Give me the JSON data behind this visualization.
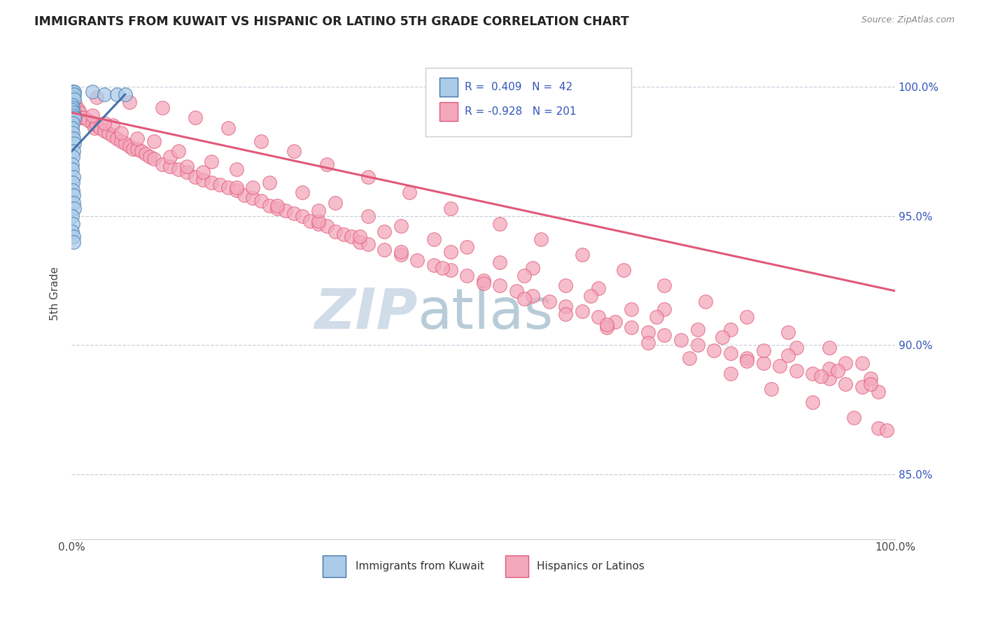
{
  "title": "IMMIGRANTS FROM KUWAIT VS HISPANIC OR LATINO 5TH GRADE CORRELATION CHART",
  "source": "Source: ZipAtlas.com",
  "ylabel": "5th Grade",
  "ytick_labels": [
    "85.0%",
    "90.0%",
    "95.0%",
    "100.0%"
  ],
  "ytick_values": [
    0.85,
    0.9,
    0.95,
    1.0
  ],
  "xlim": [
    0.0,
    1.0
  ],
  "ylim": [
    0.825,
    1.015
  ],
  "blue_color": "#aacce8",
  "pink_color": "#f4a8bc",
  "blue_line_color": "#4472a8",
  "pink_line_color": "#e05878",
  "legend_text_color": "#3355bb",
  "watermark_zip_color": "#d0dce8",
  "watermark_atlas_color": "#b8ccd8",
  "background_color": "#ffffff",
  "grid_color": "#c8d0dc",
  "blue_trend_x0": 0.0,
  "blue_trend_y0": 0.975,
  "blue_trend_x1": 0.065,
  "blue_trend_y1": 0.997,
  "pink_trend_x0": 0.0,
  "pink_trend_y0": 0.99,
  "pink_trend_x1": 1.0,
  "pink_trend_y1": 0.921,
  "blue_scatter_x": [
    0.0005,
    0.001,
    0.0008,
    0.0012,
    0.001,
    0.0015,
    0.002,
    0.0018,
    0.002,
    0.0022,
    0.003,
    0.0025,
    0.003,
    0.0028,
    0.001,
    0.0012,
    0.0008,
    0.002,
    0.0022,
    0.003,
    0.0015,
    0.001,
    0.0018,
    0.0025,
    0.003,
    0.002,
    0.0012,
    0.001,
    0.0008,
    0.0022,
    0.0018,
    0.0015,
    0.002,
    0.0025,
    0.003,
    0.001,
    0.0012,
    0.0008,
    0.0022,
    0.002,
    0.025,
    0.04,
    0.055,
    0.065
  ],
  "blue_scatter_y": [
    0.998,
    0.997,
    0.996,
    0.998,
    0.995,
    0.997,
    0.996,
    0.998,
    0.997,
    0.996,
    0.998,
    0.996,
    0.997,
    0.995,
    0.993,
    0.992,
    0.991,
    0.99,
    0.989,
    0.988,
    0.986,
    0.984,
    0.982,
    0.98,
    0.978,
    0.975,
    0.973,
    0.97,
    0.968,
    0.965,
    0.963,
    0.96,
    0.958,
    0.955,
    0.953,
    0.95,
    0.947,
    0.944,
    0.942,
    0.94,
    0.998,
    0.997,
    0.997,
    0.997
  ],
  "pink_scatter_x": [
    0.005,
    0.008,
    0.01,
    0.012,
    0.015,
    0.02,
    0.025,
    0.028,
    0.03,
    0.035,
    0.04,
    0.045,
    0.05,
    0.055,
    0.06,
    0.065,
    0.07,
    0.075,
    0.08,
    0.085,
    0.09,
    0.095,
    0.1,
    0.11,
    0.12,
    0.13,
    0.14,
    0.15,
    0.16,
    0.17,
    0.18,
    0.19,
    0.2,
    0.21,
    0.22,
    0.23,
    0.24,
    0.25,
    0.26,
    0.27,
    0.28,
    0.29,
    0.3,
    0.31,
    0.32,
    0.33,
    0.34,
    0.35,
    0.36,
    0.38,
    0.4,
    0.42,
    0.44,
    0.46,
    0.48,
    0.5,
    0.52,
    0.54,
    0.56,
    0.58,
    0.6,
    0.62,
    0.64,
    0.66,
    0.68,
    0.7,
    0.72,
    0.74,
    0.76,
    0.78,
    0.8,
    0.82,
    0.84,
    0.86,
    0.88,
    0.9,
    0.92,
    0.94,
    0.96,
    0.98,
    0.025,
    0.05,
    0.08,
    0.12,
    0.16,
    0.2,
    0.25,
    0.3,
    0.35,
    0.4,
    0.45,
    0.5,
    0.55,
    0.6,
    0.65,
    0.7,
    0.75,
    0.8,
    0.85,
    0.9,
    0.95,
    0.98,
    0.03,
    0.07,
    0.11,
    0.15,
    0.19,
    0.23,
    0.27,
    0.31,
    0.36,
    0.41,
    0.46,
    0.52,
    0.57,
    0.62,
    0.67,
    0.72,
    0.77,
    0.82,
    0.87,
    0.92,
    0.96,
    0.06,
    0.13,
    0.2,
    0.28,
    0.36,
    0.44,
    0.52,
    0.6,
    0.68,
    0.76,
    0.84,
    0.92,
    0.97,
    0.04,
    0.1,
    0.17,
    0.24,
    0.32,
    0.4,
    0.48,
    0.56,
    0.64,
    0.72,
    0.8,
    0.88,
    0.94,
    0.99,
    0.14,
    0.22,
    0.3,
    0.38,
    0.46,
    0.55,
    0.63,
    0.71,
    0.79,
    0.87,
    0.93,
    0.97,
    0.65,
    0.82,
    0.91
  ],
  "pink_scatter_y": [
    0.993,
    0.991,
    0.99,
    0.988,
    0.988,
    0.987,
    0.986,
    0.984,
    0.985,
    0.984,
    0.983,
    0.982,
    0.981,
    0.98,
    0.979,
    0.978,
    0.977,
    0.976,
    0.976,
    0.975,
    0.974,
    0.973,
    0.972,
    0.97,
    0.969,
    0.968,
    0.967,
    0.965,
    0.964,
    0.963,
    0.962,
    0.961,
    0.96,
    0.958,
    0.957,
    0.956,
    0.954,
    0.953,
    0.952,
    0.951,
    0.95,
    0.948,
    0.947,
    0.946,
    0.944,
    0.943,
    0.942,
    0.94,
    0.939,
    0.937,
    0.935,
    0.933,
    0.931,
    0.929,
    0.927,
    0.925,
    0.923,
    0.921,
    0.919,
    0.917,
    0.915,
    0.913,
    0.911,
    0.909,
    0.907,
    0.905,
    0.904,
    0.902,
    0.9,
    0.898,
    0.897,
    0.895,
    0.893,
    0.892,
    0.89,
    0.889,
    0.887,
    0.885,
    0.884,
    0.882,
    0.989,
    0.985,
    0.98,
    0.973,
    0.967,
    0.961,
    0.954,
    0.948,
    0.942,
    0.936,
    0.93,
    0.924,
    0.918,
    0.912,
    0.907,
    0.901,
    0.895,
    0.889,
    0.883,
    0.878,
    0.872,
    0.868,
    0.996,
    0.994,
    0.992,
    0.988,
    0.984,
    0.979,
    0.975,
    0.97,
    0.965,
    0.959,
    0.953,
    0.947,
    0.941,
    0.935,
    0.929,
    0.923,
    0.917,
    0.911,
    0.905,
    0.899,
    0.893,
    0.982,
    0.975,
    0.968,
    0.959,
    0.95,
    0.941,
    0.932,
    0.923,
    0.914,
    0.906,
    0.898,
    0.891,
    0.887,
    0.986,
    0.979,
    0.971,
    0.963,
    0.955,
    0.946,
    0.938,
    0.93,
    0.922,
    0.914,
    0.906,
    0.899,
    0.893,
    0.867,
    0.969,
    0.961,
    0.952,
    0.944,
    0.936,
    0.927,
    0.919,
    0.911,
    0.903,
    0.896,
    0.89,
    0.885,
    0.908,
    0.894,
    0.888
  ]
}
